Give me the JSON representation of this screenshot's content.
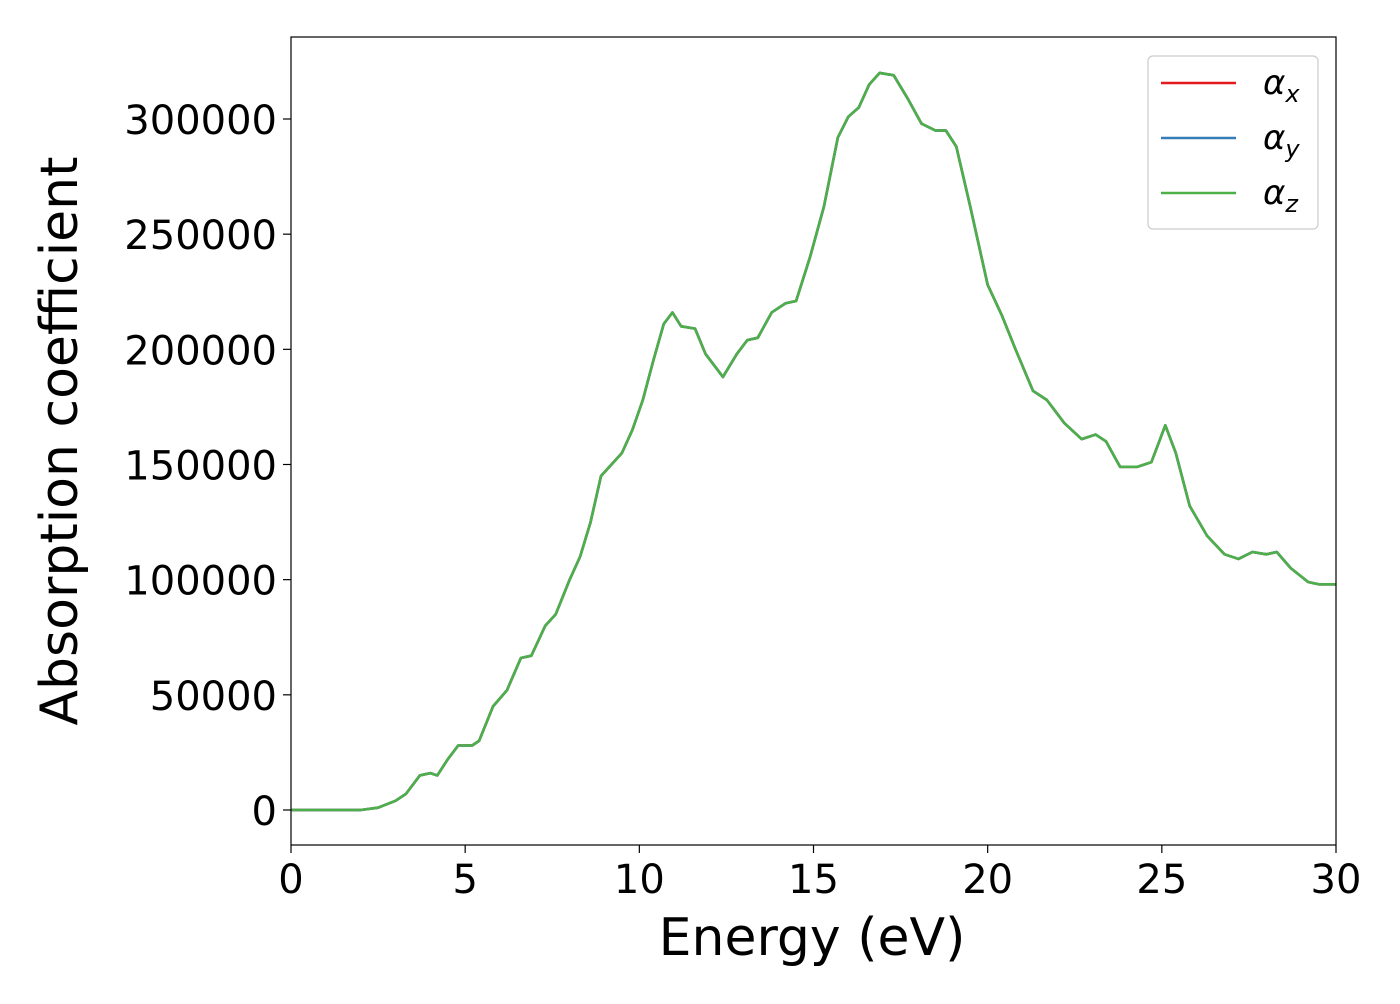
{
  "chart_data": {
    "type": "line",
    "xlabel": "Energy (eV)",
    "ylabel": "Absorption coefficient",
    "x": [
      0,
      1,
      2,
      2.5,
      3,
      3.3,
      3.7,
      4,
      4.2,
      4.5,
      4.8,
      5.2,
      5.4,
      5.8,
      6.2,
      6.6,
      6.9,
      7.3,
      7.6,
      8,
      8.3,
      8.6,
      8.9,
      9.2,
      9.5,
      9.8,
      10.1,
      10.4,
      10.7,
      10.95,
      11.2,
      11.6,
      11.9,
      12.4,
      12.8,
      13.1,
      13.4,
      13.8,
      14.2,
      14.5,
      14.9,
      15.3,
      15.7,
      16,
      16.3,
      16.6,
      16.9,
      17.3,
      17.7,
      18.1,
      18.5,
      18.8,
      19.1,
      19.5,
      20,
      20.4,
      20.8,
      21.3,
      21.7,
      22.2,
      22.7,
      23.1,
      23.4,
      23.8,
      24.3,
      24.7,
      25.1,
      25.4,
      25.8,
      26.3,
      26.8,
      27.2,
      27.6,
      28,
      28.3,
      28.7,
      29.2,
      29.5,
      30
    ],
    "series": [
      {
        "name": "αx",
        "color": "#e41a1c",
        "values": [
          0,
          0,
          0,
          1000,
          4000,
          7000,
          15000,
          16000,
          15000,
          22000,
          28000,
          28000,
          30000,
          45000,
          52000,
          66000,
          67000,
          80000,
          85000,
          100000,
          110000,
          125000,
          145000,
          150000,
          155000,
          165000,
          178000,
          195000,
          211000,
          216000,
          210000,
          209000,
          198000,
          188000,
          198000,
          204000,
          205000,
          216000,
          220000,
          221000,
          240000,
          262000,
          292000,
          301000,
          305000,
          315000,
          320000,
          319000,
          309000,
          298000,
          295000,
          295000,
          288000,
          262000,
          228000,
          215000,
          200000,
          182000,
          178000,
          168000,
          161000,
          163000,
          160000,
          149000,
          149000,
          151000,
          167000,
          155000,
          132000,
          119000,
          111000,
          109000,
          112000,
          111000,
          112000,
          105000,
          99000,
          98000,
          98000
        ]
      },
      {
        "name": "αy",
        "color": "#377eb8",
        "values": [
          0,
          0,
          0,
          1000,
          4000,
          7000,
          15000,
          16000,
          15000,
          22000,
          28000,
          28000,
          30000,
          45000,
          52000,
          66000,
          67000,
          80000,
          85000,
          100000,
          110000,
          125000,
          145000,
          150000,
          155000,
          165000,
          178000,
          195000,
          211000,
          216000,
          210000,
          209000,
          198000,
          188000,
          198000,
          204000,
          205000,
          216000,
          220000,
          221000,
          240000,
          262000,
          292000,
          301000,
          305000,
          315000,
          320000,
          319000,
          309000,
          298000,
          295000,
          295000,
          288000,
          262000,
          228000,
          215000,
          200000,
          182000,
          178000,
          168000,
          161000,
          163000,
          160000,
          149000,
          149000,
          151000,
          167000,
          155000,
          132000,
          119000,
          111000,
          109000,
          112000,
          111000,
          112000,
          105000,
          99000,
          98000,
          98000
        ]
      },
      {
        "name": "αz",
        "color": "#4daf4a",
        "values": [
          0,
          0,
          0,
          1000,
          4000,
          7000,
          15000,
          16000,
          15000,
          22000,
          28000,
          28000,
          30000,
          45000,
          52000,
          66000,
          67000,
          80000,
          85000,
          100000,
          110000,
          125000,
          145000,
          150000,
          155000,
          165000,
          178000,
          195000,
          211000,
          216000,
          210000,
          209000,
          198000,
          188000,
          198000,
          204000,
          205000,
          216000,
          220000,
          221000,
          240000,
          262000,
          292000,
          301000,
          305000,
          315000,
          320000,
          319000,
          309000,
          298000,
          295000,
          295000,
          288000,
          262000,
          228000,
          215000,
          200000,
          182000,
          178000,
          168000,
          161000,
          163000,
          160000,
          149000,
          149000,
          151000,
          167000,
          155000,
          132000,
          119000,
          111000,
          109000,
          112000,
          111000,
          112000,
          105000,
          99000,
          98000,
          98000
        ]
      }
    ],
    "xlim": [
      0,
      30
    ],
    "xticks": [
      0,
      5,
      10,
      15,
      20,
      25,
      30
    ],
    "ylim": [
      -15200,
      335600
    ],
    "yticks": [
      0,
      50000,
      100000,
      150000,
      200000,
      250000,
      300000
    ],
    "legend": "upper right"
  }
}
